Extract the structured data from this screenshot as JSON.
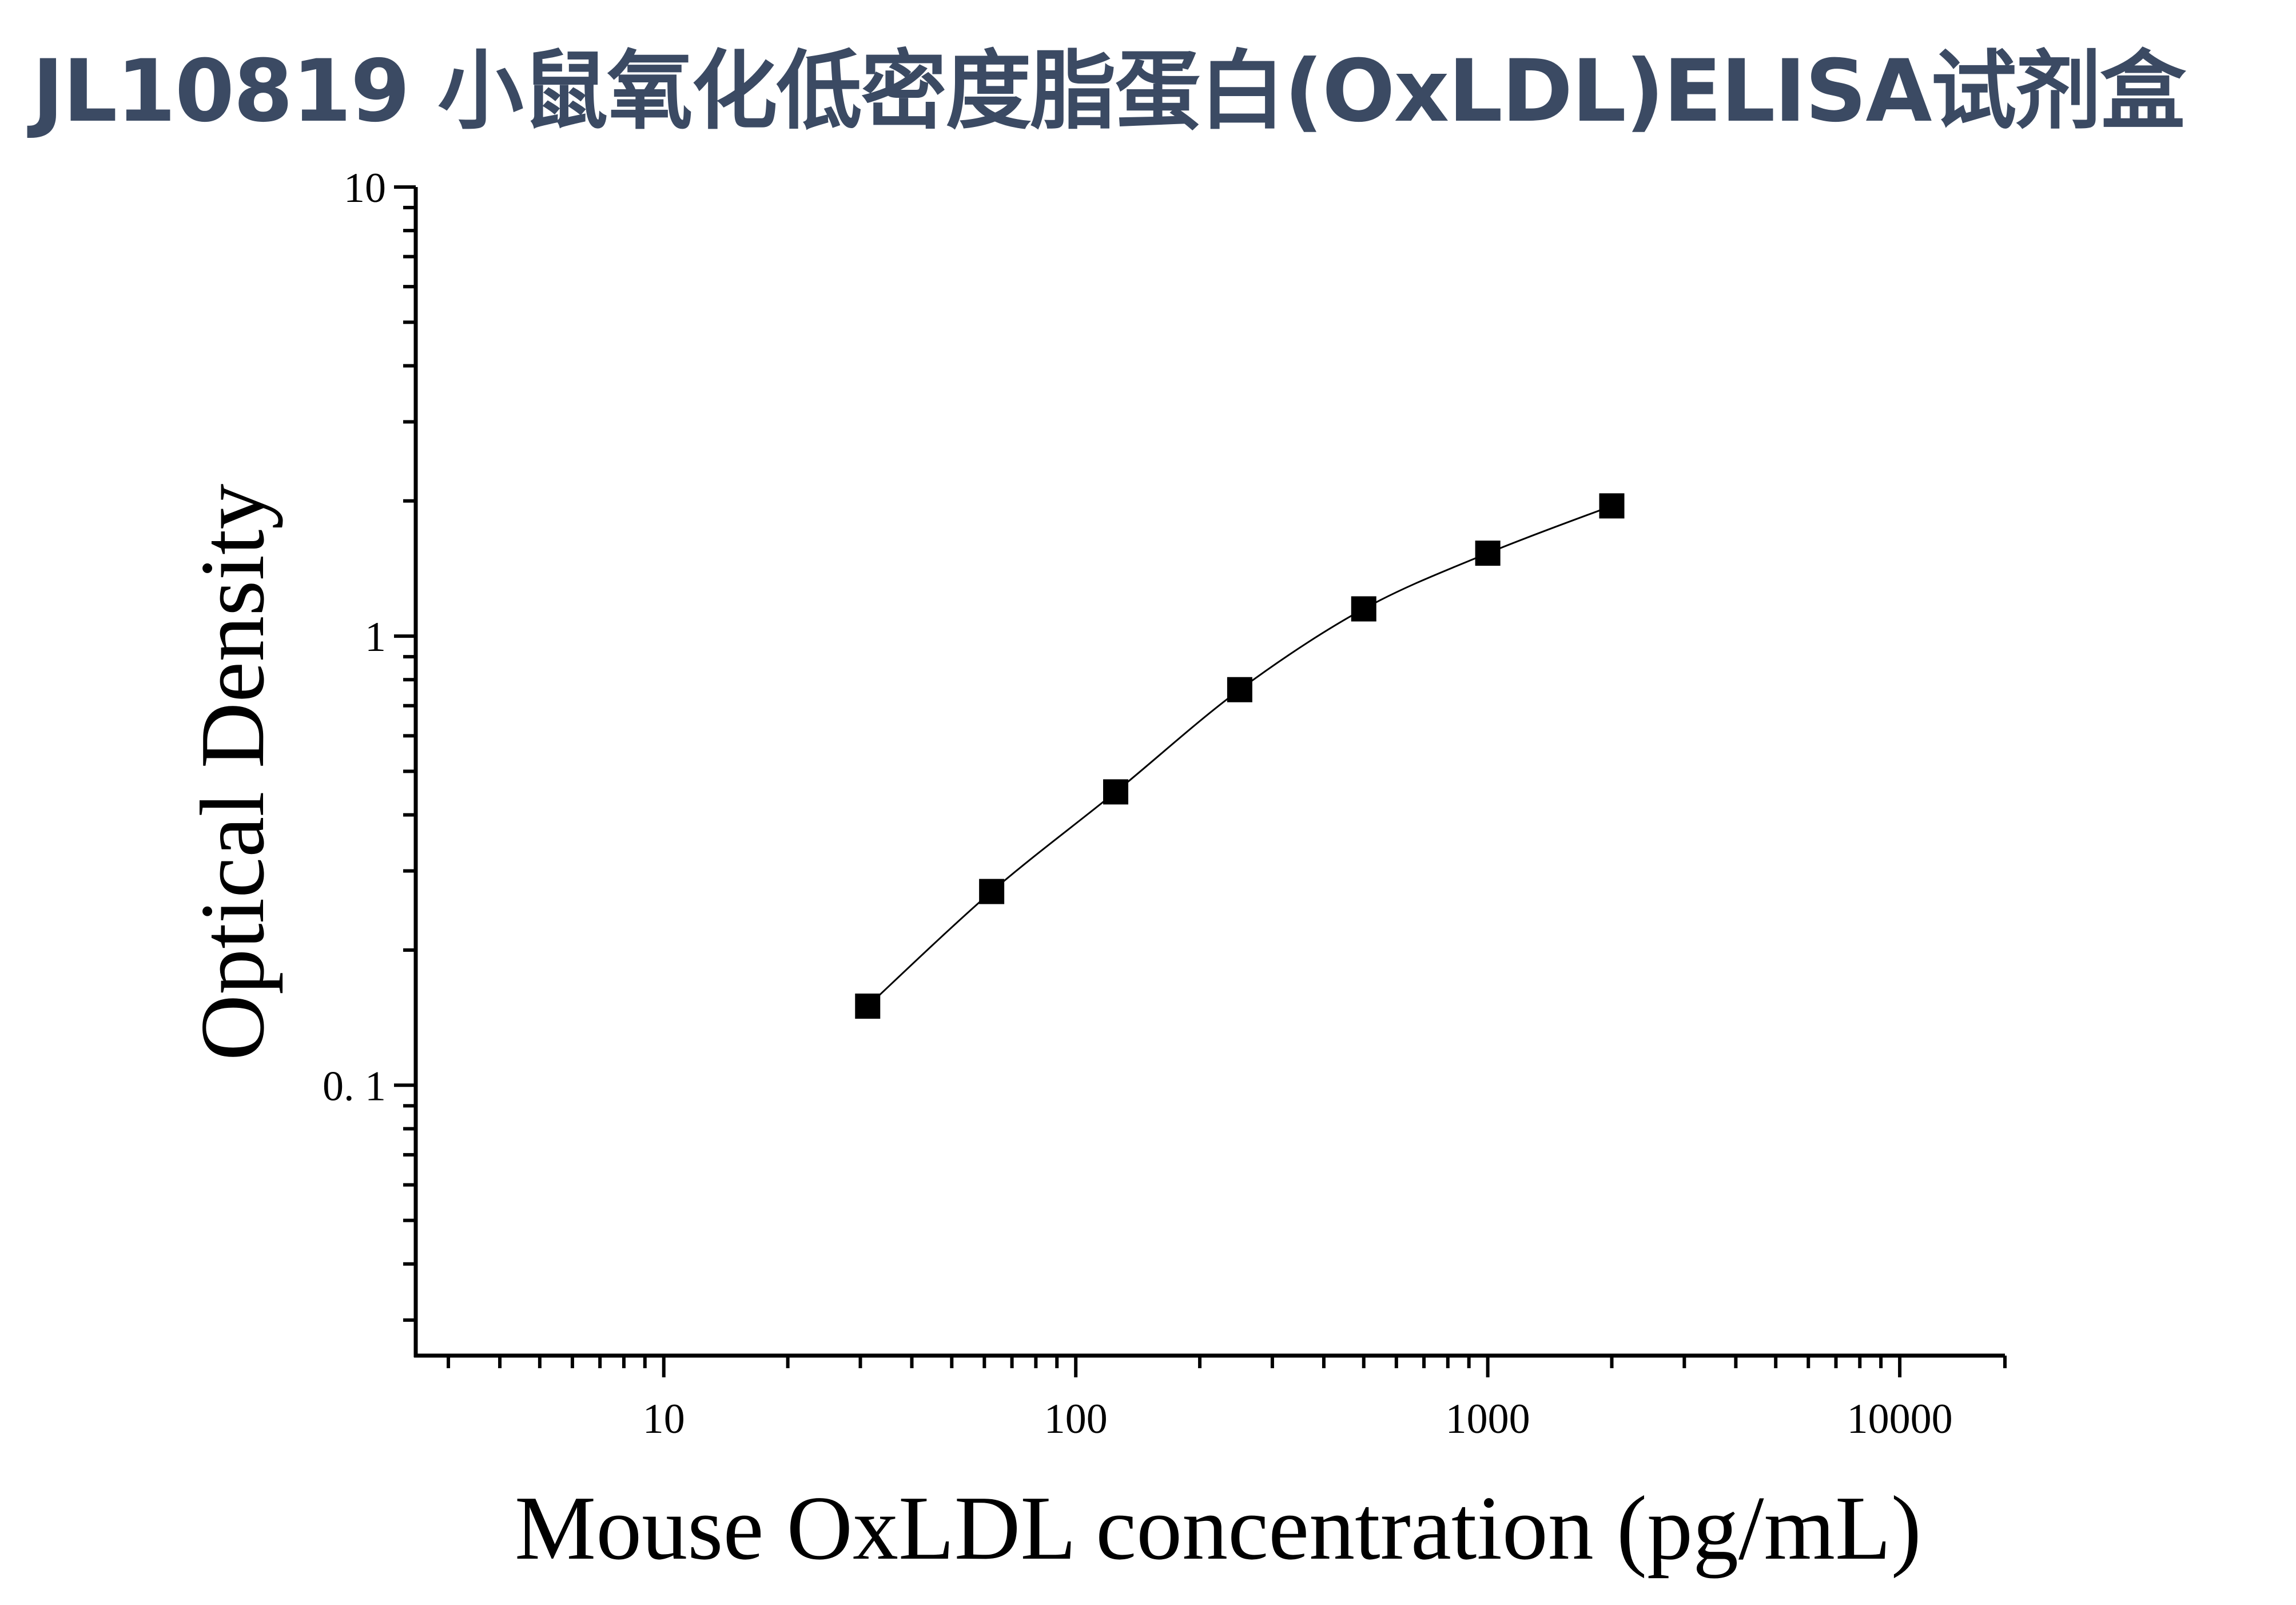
{
  "title": "JL10819 小鼠氧化低密度脂蛋白(OxLDL)ELISA试剂盒",
  "chart_data": {
    "type": "scatter",
    "x_scale": "log",
    "y_scale": "log",
    "xlim": [
      2.5,
      18000
    ],
    "ylim": [
      0.025,
      10
    ],
    "xlabel": "Mouse OxLDL concentration (pg/mL)",
    "ylabel": "Optical Density",
    "x_tick_labels": [
      "10",
      "100",
      "1000",
      "10000"
    ],
    "y_tick_labels": [
      "10",
      "1",
      "0. 1"
    ],
    "series": [
      {
        "x": [
          31.25,
          62.5,
          125,
          250,
          500,
          1000,
          2000
        ],
        "y": [
          0.15,
          0.27,
          0.45,
          0.76,
          1.15,
          1.53,
          1.95
        ]
      }
    ],
    "fit_line": true,
    "grid": false,
    "marker": "square",
    "color": "#000000"
  }
}
